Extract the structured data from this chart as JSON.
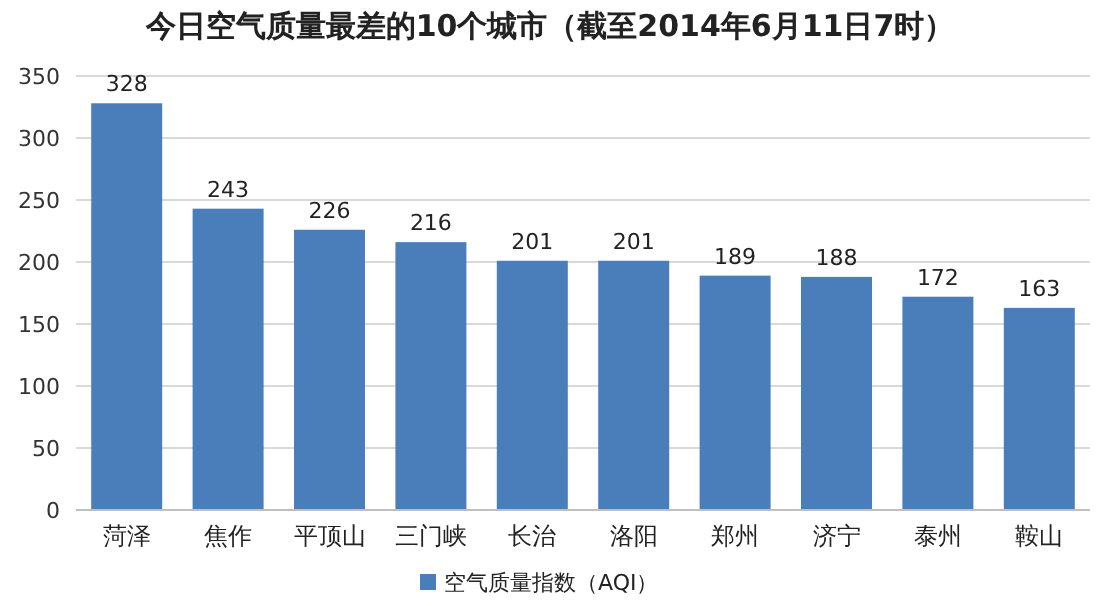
{
  "chart_data": {
    "type": "bar",
    "title": "今日空气质量最差的10个城市（截至2014年6月11日7时）",
    "categories": [
      "菏泽",
      "焦作",
      "平顶山",
      "三门峡",
      "长治",
      "洛阳",
      "郑州",
      "济宁",
      "泰州",
      "鞍山"
    ],
    "series": [
      {
        "name": "空气质量指数（AQI）",
        "color": "#4a7ebb",
        "values": [
          328,
          243,
          226,
          216,
          201,
          201,
          189,
          188,
          172,
          163
        ]
      }
    ],
    "ylim": [
      0,
      350
    ],
    "yticks": [
      0,
      50,
      100,
      150,
      200,
      250,
      300,
      350
    ],
    "grid": "y",
    "legend": "bottom",
    "data_labels": true
  }
}
